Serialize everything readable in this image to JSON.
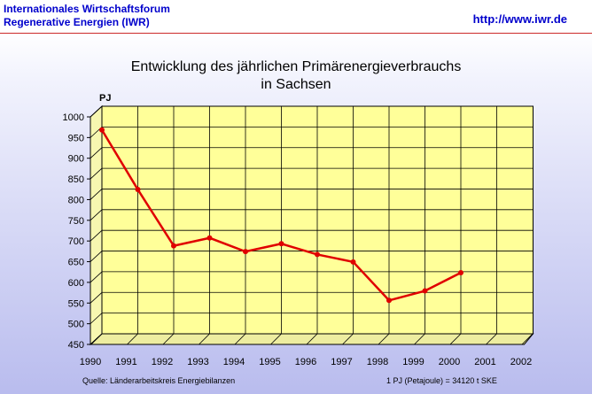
{
  "header": {
    "org_line1": "Internationales Wirtschaftsforum",
    "org_line2": "Regenerative Energien (IWR)",
    "url": "http://www.iwr.de"
  },
  "colors": {
    "header_text": "#0000cc",
    "rule": "#cc2a2a",
    "plot_wall": "#ffff99",
    "floor": "#ededa0",
    "line": "#e00000"
  },
  "chart_data": {
    "type": "line",
    "title_line1": "Entwicklung des jährlichen Primärenergieverbrauchs",
    "title_line2": "in Sachsen",
    "ylabel": "PJ",
    "xlabel": "",
    "categories": [
      "1990",
      "1991",
      "1992",
      "1993",
      "1994",
      "1995",
      "1996",
      "1997",
      "1998",
      "1999",
      "2000",
      "2001",
      "2002"
    ],
    "ylim": [
      450,
      1000
    ],
    "yticks": [
      450,
      500,
      550,
      600,
      650,
      700,
      750,
      800,
      850,
      900,
      950,
      1000
    ],
    "grid": true,
    "series": [
      {
        "values": [
          947,
          803,
          667,
          686,
          653,
          672,
          646,
          628,
          535,
          558,
          602,
          null,
          null
        ]
      }
    ]
  },
  "footer": {
    "source": "Quelle: Länderarbeitskreis Energiebilanzen",
    "conversion": "1 PJ (Petajoule) = 34120 t SKE"
  }
}
